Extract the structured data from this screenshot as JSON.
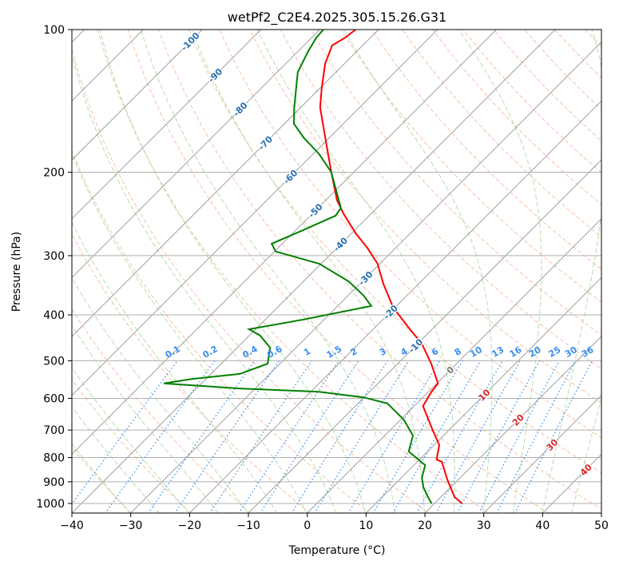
{
  "chart_data": {
    "type": "line",
    "subtype": "skew-t log-p",
    "title": "wetPf2_C2E4.2025.305.15.26.G31",
    "xlabel": "Temperature (°C)",
    "ylabel": "Pressure (hPa)",
    "xlim": [
      -40,
      50
    ],
    "ylim": [
      1050,
      100
    ],
    "x_ticks": [
      -40,
      -30,
      -20,
      -10,
      0,
      10,
      20,
      30,
      40,
      50
    ],
    "y_ticks": [
      100,
      200,
      300,
      400,
      500,
      600,
      700,
      800,
      900,
      1000
    ],
    "grid": true,
    "isotherm_labels": [
      -100,
      -90,
      -80,
      -70,
      -60,
      -50,
      -40,
      -30,
      -20,
      -10,
      0,
      10,
      20,
      30,
      40
    ],
    "mixing_ratio_labels": [
      "0.1",
      "0.2",
      "0.4",
      "0.6",
      "1",
      "1.5",
      "2",
      "3",
      "4",
      "6",
      "8",
      "10",
      "13",
      "16",
      "20",
      "25",
      "30",
      "36"
    ],
    "colors": {
      "temperature": "#ff0000",
      "dewpoint": "#008000",
      "isotherm": "#a0a0a0",
      "dry_adiabat": "#f4a582",
      "moist_adiabat": "#a6d396",
      "mixing_ratio": "#3a8ff0",
      "label_cold": "#2a70b0",
      "label_warm": "#d62728"
    },
    "series": [
      {
        "name": "Temperature",
        "p": [
          1000,
          969,
          890,
          817,
          808,
          753,
          697,
          623,
          581,
          558,
          507,
          460,
          426,
          386,
          344,
          312,
          289,
          269,
          245,
          229,
          200,
          178,
          161,
          146,
          133,
          118,
          108,
          104,
          100
        ],
        "T": [
          24.7,
          22.3,
          18.1,
          14.2,
          12.9,
          10.9,
          7.0,
          1.5,
          0.5,
          0.2,
          -4.3,
          -9.3,
          -14.2,
          -20.3,
          -26.0,
          -30.4,
          -34.8,
          -39.3,
          -44.6,
          -48.1,
          -53.8,
          -58.6,
          -62.7,
          -66.7,
          -69.7,
          -73.3,
          -75.2,
          -74.3,
          -73.9
        ]
      },
      {
        "name": "Dewpoint",
        "p": [
          1000,
          969,
          925,
          883,
          830,
          777,
          719,
          665,
          615,
          597,
          581,
          572,
          558,
          546,
          533,
          507,
          469,
          442,
          429,
          409,
          383,
          364,
          340,
          312,
          294,
          283,
          267,
          247,
          238,
          200,
          183,
          169,
          158,
          146,
          123,
          111,
          104,
          100
        ],
        "T": [
          19.5,
          17.8,
          15.4,
          13.5,
          11.9,
          6.8,
          4.8,
          0.5,
          -5.0,
          -10.1,
          -18.6,
          -32.7,
          -46.4,
          -42.4,
          -35.1,
          -32.1,
          -34.4,
          -38.2,
          -41.1,
          -33.5,
          -24.3,
          -27.4,
          -32.3,
          -40.3,
          -49.8,
          -51.8,
          -49.1,
          -45.7,
          -46.1,
          -53.8,
          -59.0,
          -64.4,
          -68.4,
          -71.1,
          -76.5,
          -78.3,
          -79.2,
          -79.4
        ]
      }
    ]
  }
}
